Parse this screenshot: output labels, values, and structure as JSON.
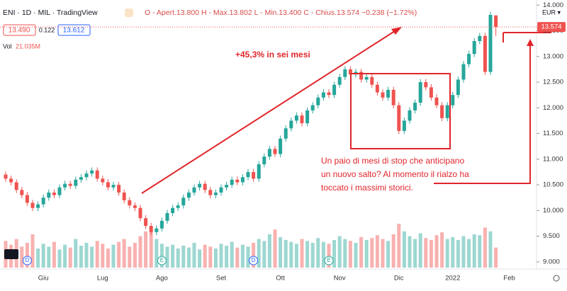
{
  "chart_data": {
    "type": "candlestick",
    "symbol": "ENI · 1D · MIL · TradingView",
    "ohlc_header": "O - Apert.13.800  H - Max.13.802  L - Min.13.400  C - Chius.13.574  −0.238 (−1.72%)",
    "bid": "13.490",
    "spread": "0.122",
    "ask": "13.612",
    "volume_label": "Vol",
    "volume_value": "21.035M",
    "currency": "EUR ▾",
    "last_price_label": "13.574",
    "annotation_gain": "+45,3% in sei mesi",
    "annotation_box": [
      "Un paio di mesi di stop che anticipano",
      "un nuovo salto? Al momento il rialzo ha",
      "toccato i massimi storici."
    ],
    "extra_x_label": "Feb",
    "events": [
      "D",
      "E",
      "D",
      "E"
    ],
    "up_color": "#26a69a",
    "down_color": "#ef5350",
    "categories": [
      null,
      null,
      null,
      null,
      null,
      null,
      null,
      "Giu",
      null,
      null,
      null,
      null,
      null,
      null,
      null,
      null,
      null,
      null,
      "Lug",
      null,
      null,
      null,
      null,
      null,
      null,
      null,
      null,
      null,
      null,
      "Ago",
      null,
      null,
      null,
      null,
      null,
      null,
      null,
      null,
      null,
      null,
      "Set",
      null,
      null,
      null,
      null,
      null,
      null,
      null,
      null,
      null,
      null,
      "Ott",
      null,
      null,
      null,
      null,
      null,
      null,
      null,
      null,
      null,
      null,
      "Nov",
      null,
      null,
      null,
      null,
      null,
      null,
      null,
      null,
      null,
      null,
      "Dic",
      null,
      null,
      null,
      null,
      null,
      null,
      null,
      null,
      null,
      "2022",
      null,
      null,
      null,
      null,
      null,
      null,
      null,
      null
    ],
    "open": [
      10.7,
      10.62,
      10.55,
      10.4,
      10.3,
      10.15,
      10.05,
      10.12,
      10.25,
      10.35,
      10.3,
      10.45,
      10.52,
      10.48,
      10.6,
      10.65,
      10.72,
      10.78,
      10.62,
      10.55,
      10.45,
      10.5,
      10.35,
      10.2,
      10.1,
      10.05,
      9.85,
      9.7,
      9.58,
      9.65,
      9.8,
      9.95,
      10.05,
      10.1,
      10.25,
      10.35,
      10.45,
      10.52,
      10.4,
      10.3,
      10.35,
      10.45,
      10.5,
      10.6,
      10.55,
      10.65,
      10.75,
      10.62,
      10.9,
      11.05,
      11.2,
      11.1,
      11.4,
      11.6,
      11.75,
      11.85,
      11.7,
      11.95,
      12.05,
      12.2,
      12.3,
      12.25,
      12.45,
      12.6,
      12.75,
      12.65,
      12.7,
      12.55,
      12.6,
      12.45,
      12.3,
      12.2,
      12.35,
      12.05,
      11.55,
      11.75,
      11.95,
      12.1,
      12.5,
      12.4,
      12.2,
      12.05,
      11.8,
      12.05,
      12.25,
      12.55,
      12.85,
      13.05,
      13.3,
      13.4,
      12.7,
      13.8
    ],
    "high": [
      10.76,
      10.68,
      10.61,
      10.46,
      10.36,
      10.21,
      10.18,
      10.31,
      10.41,
      10.41,
      10.51,
      10.58,
      10.58,
      10.66,
      10.71,
      10.78,
      10.84,
      10.84,
      10.68,
      10.61,
      10.56,
      10.56,
      10.41,
      10.26,
      10.16,
      10.11,
      9.91,
      9.76,
      9.71,
      9.86,
      10.01,
      10.11,
      10.16,
      10.31,
      10.41,
      10.51,
      10.58,
      10.58,
      10.46,
      10.41,
      10.51,
      10.56,
      10.66,
      10.66,
      10.71,
      10.81,
      10.81,
      10.96,
      11.11,
      11.26,
      11.26,
      11.46,
      11.66,
      11.81,
      11.91,
      11.91,
      12.01,
      12.11,
      12.26,
      12.36,
      12.36,
      12.51,
      12.66,
      12.81,
      12.81,
      12.76,
      12.76,
      12.66,
      12.66,
      12.51,
      12.36,
      12.41,
      12.41,
      12.11,
      11.81,
      12.01,
      12.16,
      12.56,
      12.56,
      12.46,
      12.26,
      12.11,
      12.11,
      12.31,
      12.61,
      12.91,
      13.11,
      13.36,
      13.46,
      13.46,
      13.87,
      13.802
    ],
    "low": [
      10.56,
      10.49,
      10.34,
      10.24,
      10.09,
      9.99,
      9.99,
      10.06,
      10.19,
      10.24,
      10.24,
      10.39,
      10.42,
      10.42,
      10.54,
      10.59,
      10.66,
      10.56,
      10.49,
      10.39,
      10.39,
      10.29,
      10.14,
      10.04,
      9.99,
      9.79,
      9.64,
      9.52,
      9.52,
      9.59,
      9.74,
      9.89,
      9.99,
      10.04,
      10.19,
      10.29,
      10.39,
      10.34,
      10.24,
      10.24,
      10.29,
      10.39,
      10.44,
      10.49,
      10.49,
      10.59,
      10.56,
      10.56,
      10.84,
      10.99,
      11.04,
      11.04,
      11.34,
      11.54,
      11.69,
      11.64,
      11.64,
      11.89,
      11.99,
      12.14,
      12.19,
      12.19,
      12.39,
      12.54,
      12.59,
      12.59,
      12.49,
      12.49,
      12.39,
      12.24,
      12.14,
      12.14,
      11.99,
      11.49,
      11.49,
      11.69,
      11.89,
      12.04,
      12.34,
      12.14,
      11.99,
      11.74,
      11.74,
      11.99,
      12.19,
      12.49,
      12.79,
      12.99,
      13.24,
      12.64,
      12.64,
      13.4
    ],
    "close": [
      10.62,
      10.55,
      10.4,
      10.3,
      10.15,
      10.05,
      10.12,
      10.25,
      10.35,
      10.3,
      10.45,
      10.52,
      10.48,
      10.6,
      10.65,
      10.72,
      10.78,
      10.62,
      10.55,
      10.45,
      10.5,
      10.35,
      10.2,
      10.1,
      10.05,
      9.85,
      9.7,
      9.58,
      9.65,
      9.8,
      9.95,
      10.05,
      10.1,
      10.25,
      10.35,
      10.45,
      10.52,
      10.4,
      10.3,
      10.35,
      10.45,
      10.5,
      10.6,
      10.55,
      10.65,
      10.75,
      10.62,
      10.9,
      11.05,
      11.2,
      11.1,
      11.4,
      11.6,
      11.75,
      11.85,
      11.7,
      11.95,
      12.05,
      12.2,
      12.3,
      12.25,
      12.45,
      12.6,
      12.75,
      12.65,
      12.7,
      12.55,
      12.6,
      12.45,
      12.3,
      12.2,
      12.35,
      12.05,
      11.55,
      11.75,
      11.95,
      12.1,
      12.5,
      12.4,
      12.2,
      12.05,
      11.8,
      12.05,
      12.25,
      12.55,
      12.85,
      13.05,
      13.3,
      13.4,
      12.7,
      13.81,
      13.574
    ],
    "volume": [
      28,
      24,
      30,
      22,
      26,
      35,
      20,
      25,
      22,
      27,
      19,
      24,
      21,
      30,
      23,
      26,
      22,
      28,
      25,
      20,
      24,
      27,
      30,
      22,
      26,
      33,
      38,
      42,
      30,
      25,
      22,
      24,
      20,
      23,
      21,
      26,
      19,
      24,
      22,
      20,
      25,
      23,
      27,
      21,
      24,
      22,
      26,
      30,
      28,
      35,
      40,
      32,
      29,
      27,
      25,
      30,
      28,
      26,
      31,
      27,
      25,
      29,
      33,
      30,
      28,
      26,
      32,
      29,
      31,
      34,
      30,
      28,
      35,
      46,
      38,
      33,
      30,
      36,
      31,
      29,
      34,
      37,
      30,
      32,
      29,
      33,
      30,
      35,
      34,
      42,
      38,
      21.035
    ],
    "ylim": [
      8.86,
      14.1
    ],
    "yticks": [
      {
        "value": 9,
        "label": "9.000"
      },
      {
        "value": 9.5,
        "label": "9.500"
      },
      {
        "value": 10,
        "label": "10.000"
      },
      {
        "value": 10.5,
        "label": "10.500"
      },
      {
        "value": 11,
        "label": "11.000"
      },
      {
        "value": 11.5,
        "label": "11.500"
      },
      {
        "value": 12,
        "label": "12.000"
      },
      {
        "value": 12.5,
        "label": "12.500"
      },
      {
        "value": 13,
        "label": "13.000"
      },
      {
        "value": 13.5,
        "label": "13.500"
      },
      {
        "value": 14,
        "label": "14.000"
      }
    ]
  }
}
